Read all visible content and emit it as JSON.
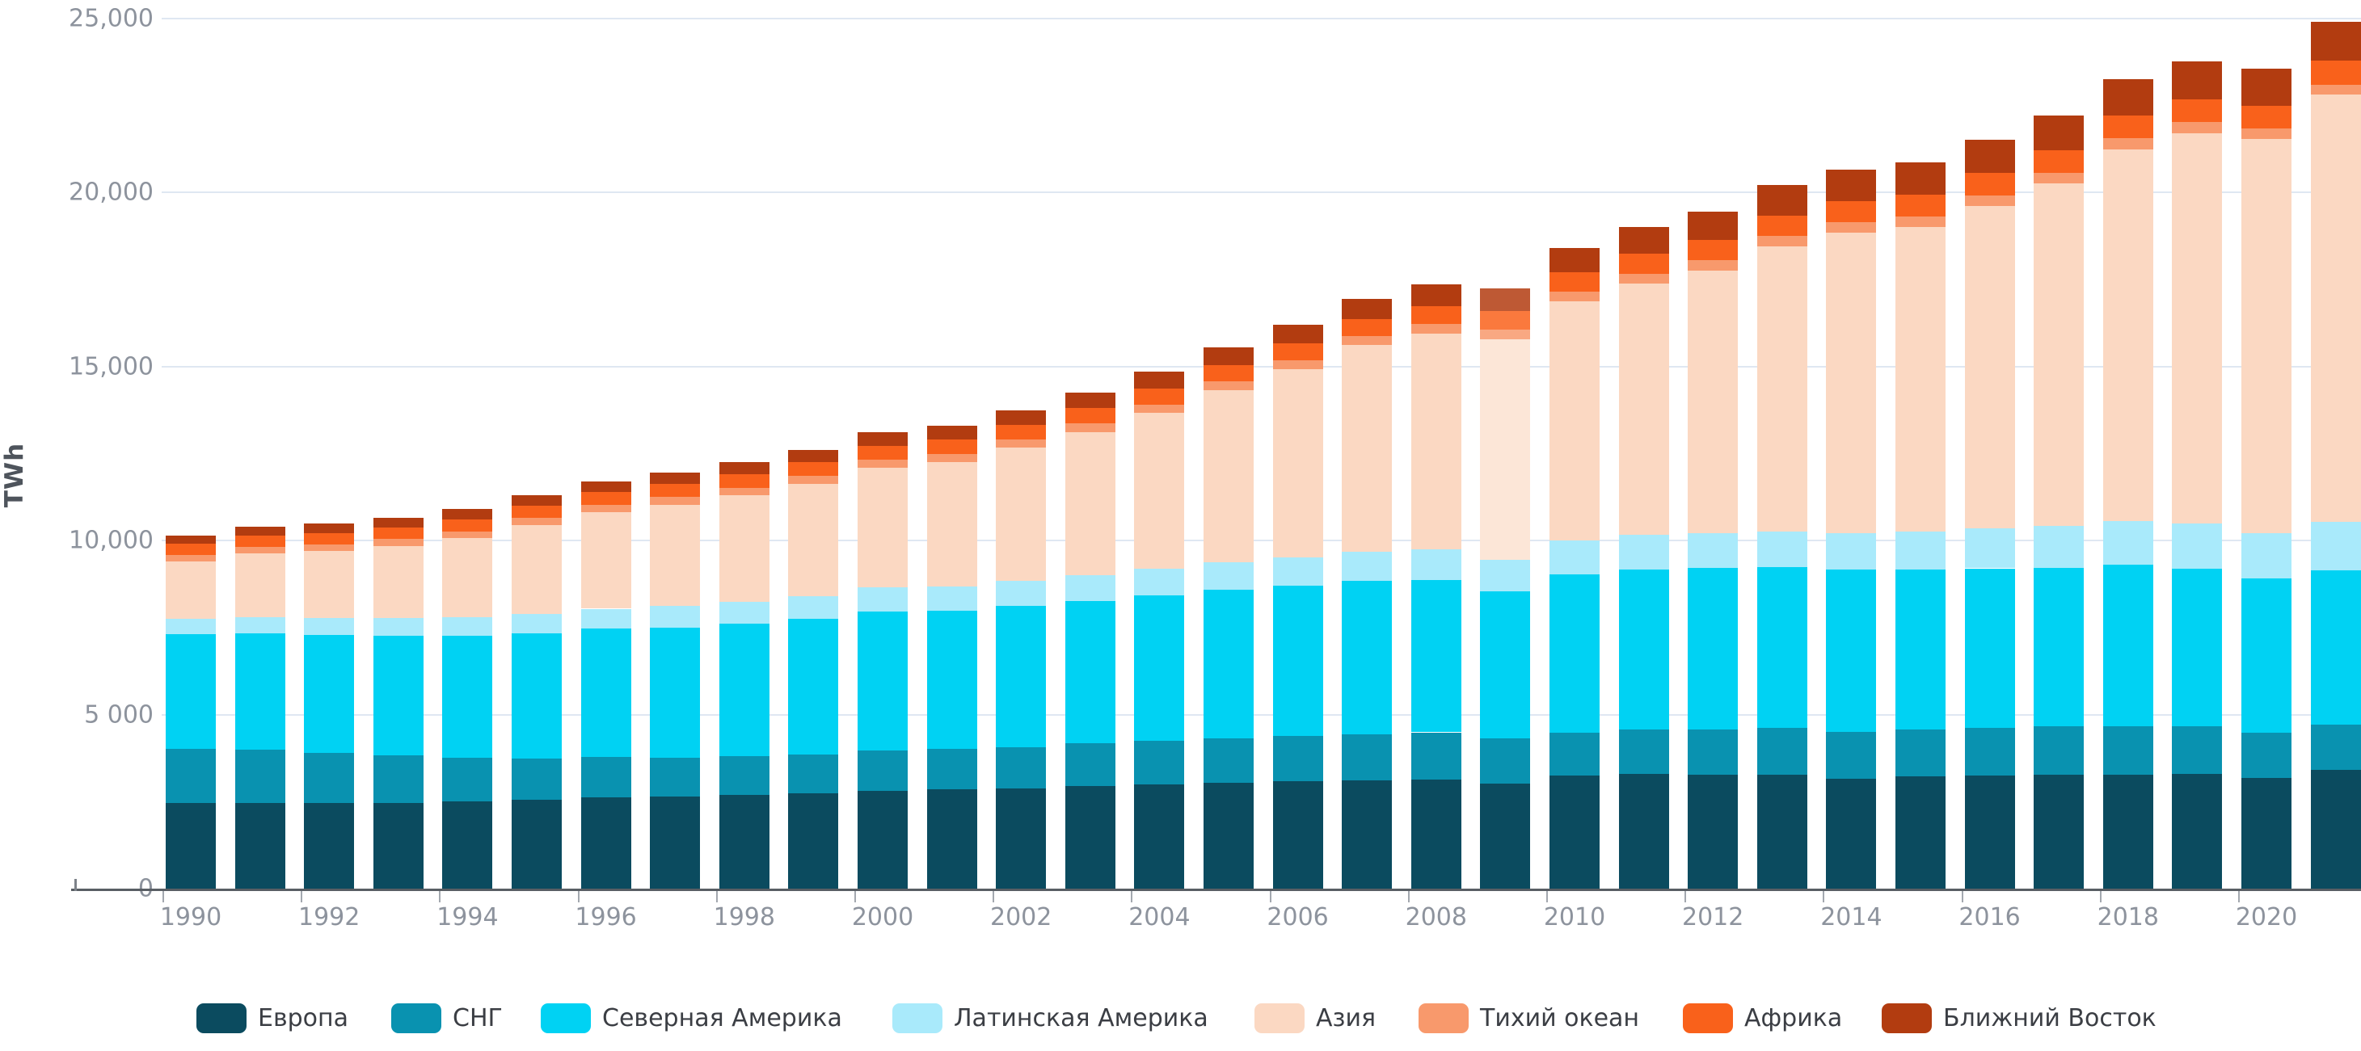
{
  "chart_data": {
    "type": "bar",
    "stacked": true,
    "ylabel": "TWh",
    "unit": "TWh",
    "ylim": [
      0,
      25000
    ],
    "grid": "horizontal",
    "legend_position": "bottom",
    "highlighted_year": 2009,
    "x": [
      1990,
      1991,
      1992,
      1993,
      1994,
      1995,
      1996,
      1997,
      1998,
      1999,
      2000,
      2001,
      2002,
      2003,
      2004,
      2005,
      2006,
      2007,
      2008,
      2009,
      2010,
      2011,
      2012,
      2013,
      2014,
      2015,
      2016,
      2017,
      2018,
      2019,
      2020,
      2021
    ],
    "x_tick_labels": [
      "1990",
      "1992",
      "1994",
      "1996",
      "1998",
      "2000",
      "2002",
      "2004",
      "2006",
      "2008",
      "2010",
      "2012",
      "2014",
      "2016",
      "2018",
      "2020"
    ],
    "y_ticks": [
      {
        "value": 0,
        "label": "0"
      },
      {
        "value": 5000,
        "label": "5 000"
      },
      {
        "value": 10000,
        "label": "10,000"
      },
      {
        "value": 15000,
        "label": "15,000"
      },
      {
        "value": 20000,
        "label": "20,000"
      },
      {
        "value": 25000,
        "label": "25,000"
      }
    ],
    "series": [
      {
        "name": "Европа",
        "color": "#0b4b5f",
        "values": [
          2450,
          2460,
          2450,
          2470,
          2500,
          2550,
          2630,
          2650,
          2700,
          2740,
          2810,
          2850,
          2880,
          2950,
          3000,
          3040,
          3090,
          3110,
          3140,
          3020,
          3240,
          3290,
          3270,
          3280,
          3160,
          3220,
          3260,
          3280,
          3270,
          3300,
          3180,
          3400
        ]
      },
      {
        "name": "СНГ",
        "color": "#0992b0",
        "values": [
          1570,
          1540,
          1450,
          1350,
          1250,
          1190,
          1160,
          1120,
          1100,
          1120,
          1150,
          1170,
          1190,
          1220,
          1250,
          1270,
          1300,
          1330,
          1350,
          1300,
          1240,
          1280,
          1310,
          1330,
          1350,
          1340,
          1360,
          1380,
          1400,
          1370,
          1300,
          1300
        ]
      },
      {
        "name": "Северная Америка",
        "color": "#00d2f3",
        "values": [
          3280,
          3330,
          3380,
          3450,
          3520,
          3600,
          3670,
          3730,
          3810,
          3890,
          4000,
          3960,
          4050,
          4100,
          4180,
          4280,
          4320,
          4400,
          4380,
          4230,
          4550,
          4600,
          4640,
          4620,
          4650,
          4600,
          4580,
          4560,
          4640,
          4520,
          4430,
          4450
        ]
      },
      {
        "name": "Латинская Америка",
        "color": "#a9eafb",
        "values": [
          460,
          475,
          490,
          510,
          530,
          555,
          580,
          610,
          630,
          655,
          690,
          700,
          715,
          735,
          760,
          780,
          810,
          845,
          880,
          900,
          960,
          990,
          1000,
          1020,
          1050,
          1100,
          1150,
          1200,
          1250,
          1300,
          1310,
          1390
        ]
      },
      {
        "name": "Азия",
        "color": "#fbd8c2",
        "values": [
          1640,
          1825,
          1920,
          2060,
          2260,
          2540,
          2770,
          2920,
          3060,
          3220,
          3440,
          3570,
          3830,
          4110,
          4470,
          4940,
          5390,
          5920,
          6200,
          6330,
          6880,
          7220,
          7530,
          8190,
          8630,
          8740,
          9260,
          9830,
          10680,
          11200,
          11310,
          12270
        ]
      },
      {
        "name": "Тихий океан",
        "color": "#f8996c",
        "values": [
          190,
          193,
          195,
          198,
          201,
          205,
          209,
          213,
          217,
          221,
          226,
          230,
          234,
          240,
          246,
          252,
          258,
          264,
          270,
          272,
          280,
          286,
          292,
          297,
          302,
          305,
          308,
          312,
          316,
          318,
          312,
          280
        ]
      },
      {
        "name": "Африка",
        "color": "#f9611b",
        "values": [
          320,
          327,
          333,
          340,
          348,
          356,
          365,
          374,
          384,
          394,
          405,
          416,
          428,
          442,
          456,
          470,
          485,
          500,
          515,
          530,
          548,
          565,
          580,
          596,
          610,
          622,
          632,
          642,
          652,
          655,
          635,
          700
        ]
      },
      {
        "name": "Ближний Восток",
        "color": "#b23c10",
        "values": [
          240,
          250,
          262,
          275,
          288,
          300,
          315,
          330,
          346,
          362,
          380,
          400,
          420,
          450,
          480,
          510,
          540,
          575,
          615,
          665,
          705,
          765,
          825,
          865,
          895,
          925,
          955,
          990,
          1040,
          1090,
          1070,
          1110
        ]
      }
    ]
  }
}
